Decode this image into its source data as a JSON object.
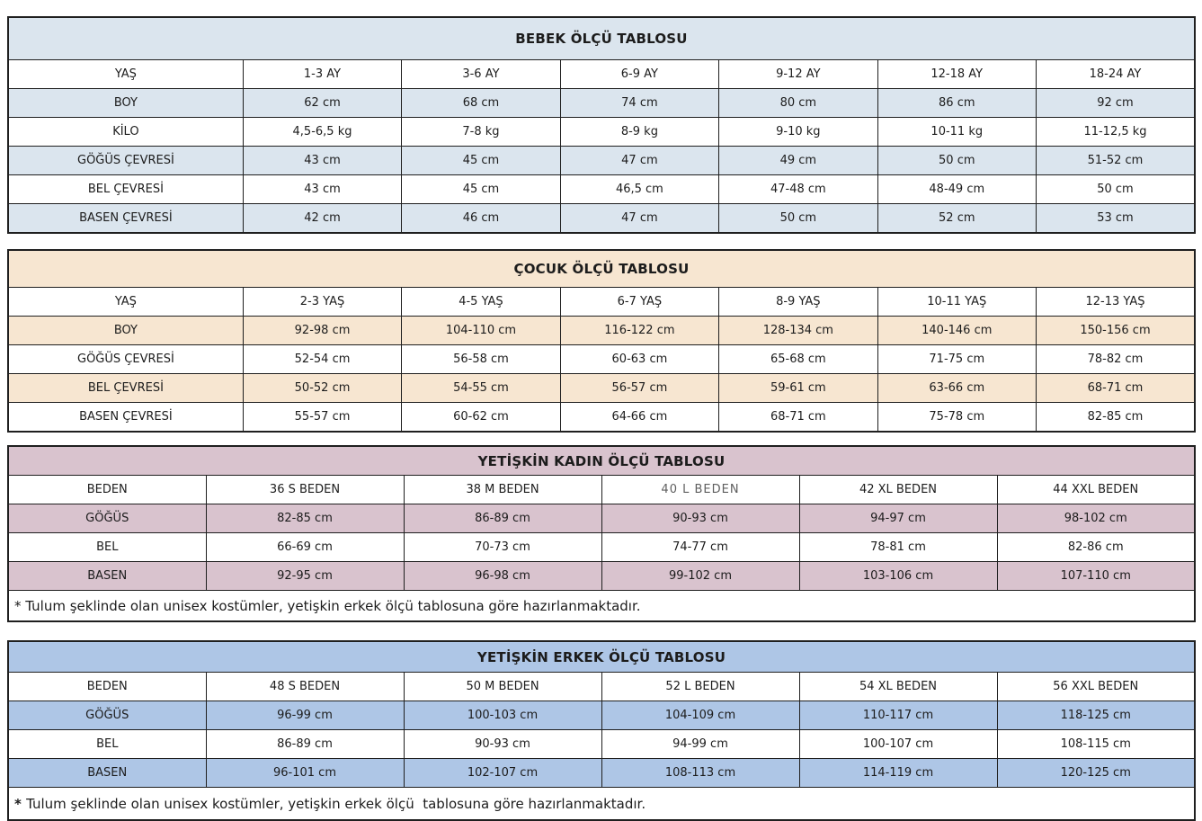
{
  "page": {
    "background": "#ffffff",
    "text_color": "#1c1c1c",
    "border_color": "#1f1f1f"
  },
  "tables": [
    {
      "id": "bebek",
      "title": "BEBEK ÖLÇÜ TABLOSU",
      "theme_color": "#dbe5ee",
      "rows": [
        {
          "label": "YAŞ",
          "values": [
            "1-3 AY",
            "3-6 AY",
            "6-9 AY",
            "9-12 AY",
            "12-18 AY",
            "18-24 AY"
          ]
        },
        {
          "label": "BOY",
          "values": [
            "62 cm",
            "68 cm",
            "74 cm",
            "80 cm",
            "86 cm",
            "92 cm"
          ]
        },
        {
          "label": "KİLO",
          "values": [
            "4,5-6,5 kg",
            "7-8 kg",
            "8-9 kg",
            "9-10 kg",
            "10-11 kg",
            "11-12,5 kg"
          ]
        },
        {
          "label": "GÖĞÜS ÇEVRESİ",
          "values": [
            "43 cm",
            "45 cm",
            "47 cm",
            "49 cm",
            "50 cm",
            "51-52 cm"
          ]
        },
        {
          "label": "BEL ÇEVRESİ",
          "values": [
            "43 cm",
            "45 cm",
            "46,5 cm",
            "47-48 cm",
            "48-49 cm",
            "50 cm"
          ]
        },
        {
          "label": "BASEN ÇEVRESİ",
          "values": [
            "42 cm",
            "46 cm",
            "47 cm",
            "50 cm",
            "52 cm",
            "53 cm"
          ]
        }
      ]
    },
    {
      "id": "cocuk",
      "title": "ÇOCUK ÖLÇÜ TABLOSU",
      "theme_color": "#f7e6d1",
      "rows": [
        {
          "label": "YAŞ",
          "values": [
            "2-3 YAŞ",
            "4-5 YAŞ",
            "6-7 YAŞ",
            "8-9 YAŞ",
            "10-11 YAŞ",
            "12-13 YAŞ"
          ]
        },
        {
          "label": "BOY",
          "values": [
            "92-98 cm",
            "104-110 cm",
            "116-122 cm",
            "128-134 cm",
            "140-146 cm",
            "150-156 cm"
          ]
        },
        {
          "label": "GÖĞÜS ÇEVRESİ",
          "values": [
            "52-54 cm",
            "56-58 cm",
            "60-63 cm",
            "65-68 cm",
            "71-75 cm",
            "78-82 cm"
          ]
        },
        {
          "label": "BEL ÇEVRESİ",
          "values": [
            "50-52 cm",
            "54-55 cm",
            "56-57 cm",
            "59-61 cm",
            "63-66 cm",
            "68-71 cm"
          ]
        },
        {
          "label": "BASEN ÇEVRESİ",
          "values": [
            "55-57 cm",
            "60-62 cm",
            "64-66 cm",
            "68-71 cm",
            "75-78 cm",
            "82-85 cm"
          ]
        }
      ]
    },
    {
      "id": "kadin",
      "title": "YETİŞKİN KADIN ÖLÇÜ TABLOSU",
      "theme_color": "#d9c3ce",
      "rows": [
        {
          "label": "BEDEN",
          "values": [
            "36 S BEDEN",
            "38 M BEDEN",
            "40 L BEDEN",
            "42 XL BEDEN",
            "44 XXL BEDEN"
          ]
        },
        {
          "label": "GÖĞÜS",
          "values": [
            "82-85 cm",
            "86-89 cm",
            "90-93 cm",
            "94-97 cm",
            "98-102 cm"
          ]
        },
        {
          "label": "BEL",
          "values": [
            "66-69 cm",
            "70-73 cm",
            "74-77 cm",
            "78-81 cm",
            "82-86 cm"
          ]
        },
        {
          "label": "BASEN",
          "values": [
            "92-95 cm",
            "96-98 cm",
            "99-102 cm",
            "103-106 cm",
            "107-110 cm"
          ]
        }
      ],
      "muted_cells": [
        {
          "row": 0,
          "col": 2
        }
      ],
      "footnote": {
        "marker": "*",
        "bold_marker": false,
        "text": "Tulum şeklinde olan unisex kostümler, yetişkin erkek ölçü tablosuna göre hazırlanmaktadır."
      }
    },
    {
      "id": "erkek",
      "title": "YETİŞKİN ERKEK ÖLÇÜ TABLOSU",
      "theme_color": "#aec6e6",
      "rows": [
        {
          "label": "BEDEN",
          "values": [
            "48 S BEDEN",
            "50 M BEDEN",
            "52 L BEDEN",
            "54 XL BEDEN",
            "56 XXL BEDEN"
          ]
        },
        {
          "label": "GÖĞÜS",
          "values": [
            "96-99 cm",
            "100-103 cm",
            "104-109 cm",
            "110-117 cm",
            "118-125 cm"
          ]
        },
        {
          "label": "BEL",
          "values": [
            "86-89 cm",
            "90-93 cm",
            "94-99 cm",
            "100-107 cm",
            "108-115 cm"
          ]
        },
        {
          "label": "BASEN",
          "values": [
            "96-101 cm",
            "102-107 cm",
            "108-113 cm",
            "114-119 cm",
            "120-125 cm"
          ]
        }
      ],
      "footnote": {
        "marker": "*",
        "bold_marker": true,
        "text": "Tulum şeklinde olan unisex kostümler, yetişkin erkek ölçü  tablosuna göre hazırlanmaktadır."
      }
    }
  ]
}
